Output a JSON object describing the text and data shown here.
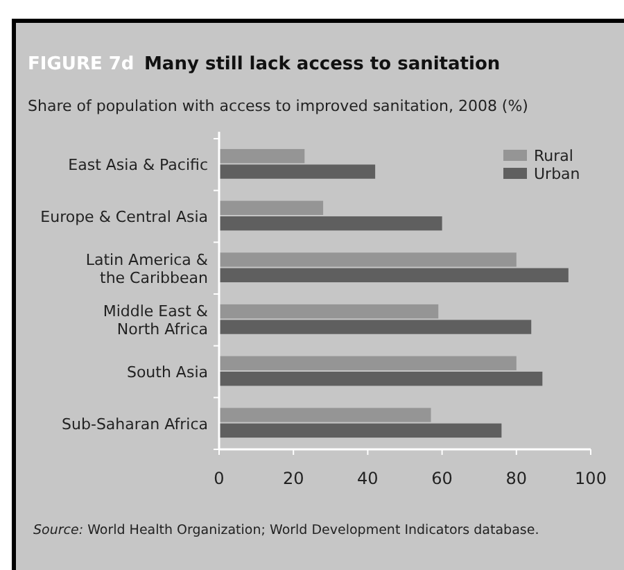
{
  "chart_data": {
    "type": "bar",
    "orientation": "horizontal",
    "title": "Many still lack access to sanitation",
    "subtitle": "Share of population with access to improved sanitation,  2008 (%)",
    "annotations": [
      "FIGURE 7d",
      "Source: World Health Organization; World Development Indicators database."
    ],
    "categories": [
      "East Asia & Pacific",
      "Europe & Central Asia",
      "Latin America &\nthe Caribbean",
      "Middle East &\nNorth Africa",
      "South Asia",
      "Sub-Saharan Africa"
    ],
    "series": [
      {
        "name": "Rural",
        "color": "#959595",
        "values": [
          23,
          28,
          80,
          59,
          80,
          57
        ]
      },
      {
        "name": "Urban",
        "color": "#5f5f5f",
        "values": [
          42,
          60,
          94,
          84,
          87,
          76
        ]
      }
    ],
    "xlim": [
      0,
      100
    ],
    "xticks": [
      0,
      20,
      40,
      60,
      80,
      100
    ],
    "grid": false,
    "legend": "top right"
  }
}
